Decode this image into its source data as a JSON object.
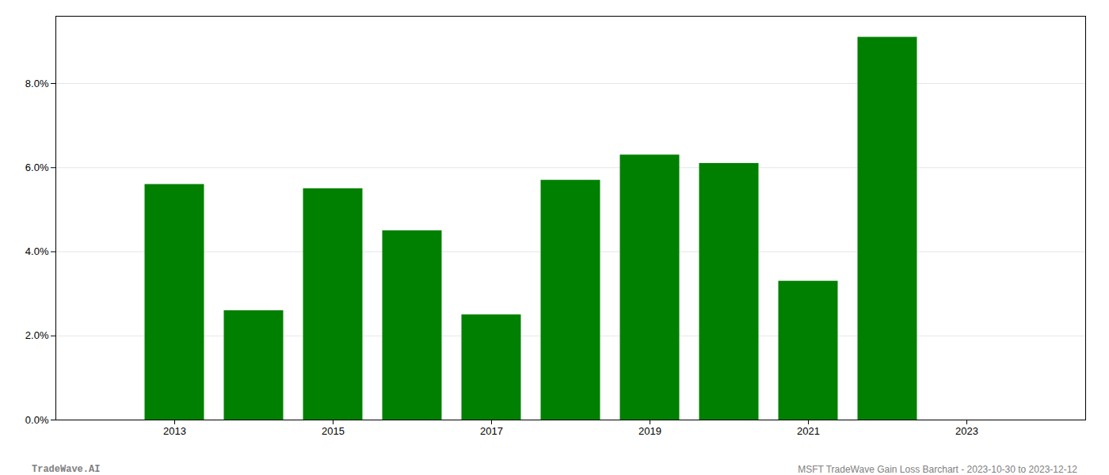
{
  "chart_data": {
    "type": "bar",
    "x": [
      2013,
      2014,
      2015,
      2016,
      2017,
      2018,
      2019,
      2020,
      2021,
      2022
    ],
    "values": [
      0.056,
      0.026,
      0.055,
      0.045,
      0.025,
      0.057,
      0.063,
      0.061,
      0.033,
      0.091
    ],
    "color": "#008000",
    "xlim": [
      2011.5,
      2024.5
    ],
    "xticks": [
      2013,
      2015,
      2017,
      2019,
      2021,
      2023
    ],
    "ylim": [
      0.0,
      0.096
    ],
    "yticks": [
      {
        "value": 0.0,
        "label": "0.0%"
      },
      {
        "value": 0.02,
        "label": "2.0%"
      },
      {
        "value": 0.04,
        "label": "4.0%"
      },
      {
        "value": 0.06,
        "label": "6.0%"
      },
      {
        "value": 0.08,
        "label": "8.0%"
      }
    ],
    "grid": true,
    "annotations": [
      "TradeWave.AI",
      "MSFT TradeWave Gain Loss Barchart - 2023-10-30 to 2023-12-12"
    ]
  }
}
